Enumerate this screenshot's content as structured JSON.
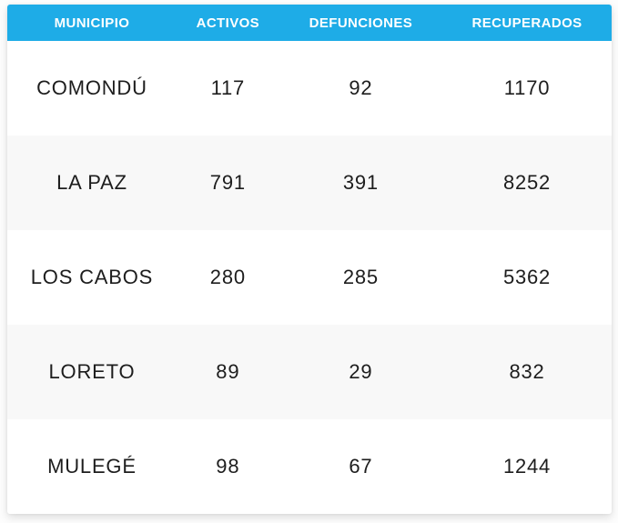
{
  "table": {
    "columns": [
      {
        "key": "municipio",
        "label": "MUNICIPIO"
      },
      {
        "key": "activos",
        "label": "ACTIVOS"
      },
      {
        "key": "defunciones",
        "label": "DEFUNCIONES"
      },
      {
        "key": "recuperados",
        "label": "RECUPERADOS"
      }
    ],
    "rows": [
      {
        "municipio": "COMONDÚ",
        "activos": "117",
        "defunciones": "92",
        "recuperados": "1170"
      },
      {
        "municipio": "LA PAZ",
        "activos": "791",
        "defunciones": "391",
        "recuperados": "8252"
      },
      {
        "municipio": "LOS CABOS",
        "activos": "280",
        "defunciones": "285",
        "recuperados": "5362"
      },
      {
        "municipio": "LORETO",
        "activos": "89",
        "defunciones": "29",
        "recuperados": "832"
      },
      {
        "municipio": "MULEGÉ",
        "activos": "98",
        "defunciones": "67",
        "recuperados": "1244"
      }
    ]
  },
  "colors": {
    "header_bg": "#1eace7",
    "header_text": "#ffffff",
    "row_bg": "#ffffff",
    "row_alt_bg": "#f8f8f8",
    "row_text": "#1d1d1d",
    "page_bg": "#fdfdfd",
    "card_bg": "#ffffff"
  },
  "chart_data": {
    "type": "table",
    "title": "",
    "columns": [
      "MUNICIPIO",
      "ACTIVOS",
      "DEFUNCIONES",
      "RECUPERADOS"
    ],
    "rows": [
      [
        "COMONDÚ",
        117,
        92,
        1170
      ],
      [
        "LA PAZ",
        791,
        391,
        8252
      ],
      [
        "LOS CABOS",
        280,
        285,
        5362
      ],
      [
        "LORETO",
        89,
        29,
        832
      ],
      [
        "MULEGÉ",
        98,
        67,
        1244
      ]
    ],
    "layout_hints": {
      "header_style": "cyan background, white bold uppercase text",
      "row_striping": "odd rows white, even rows light gray",
      "alignment": "all cells centered",
      "grid": "off"
    }
  }
}
